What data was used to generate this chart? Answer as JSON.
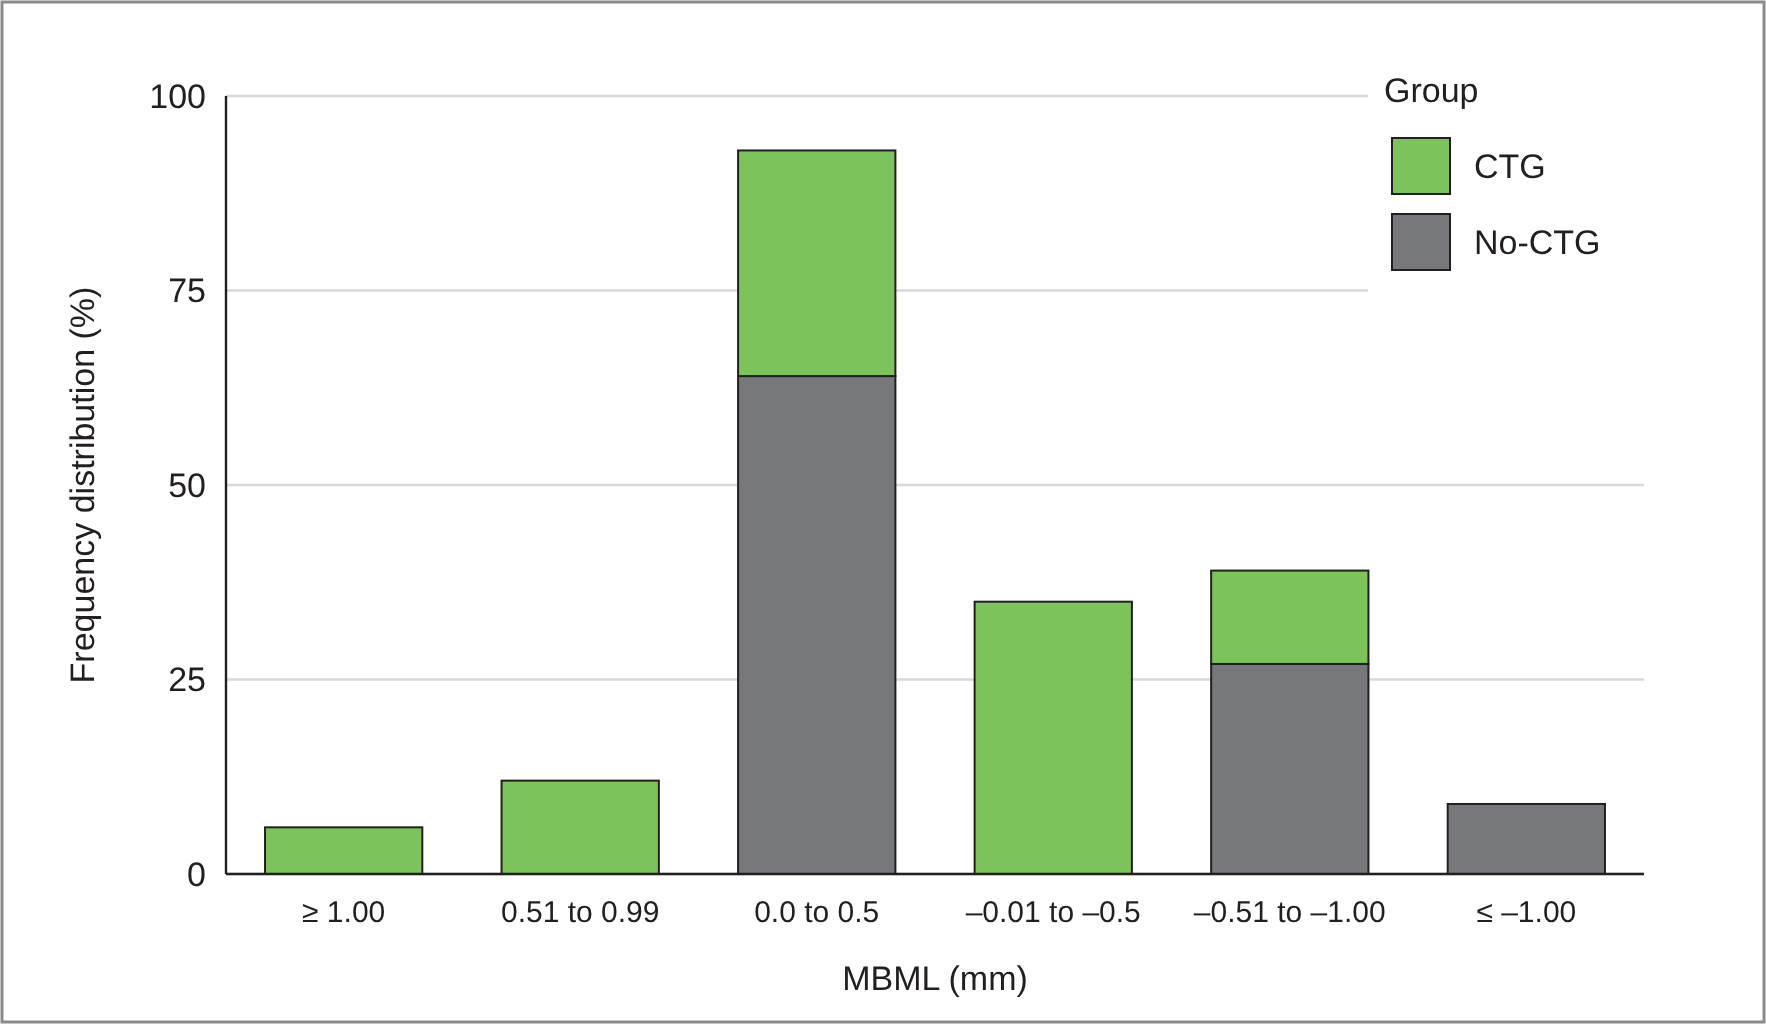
{
  "chart_data": {
    "type": "bar",
    "stacked": true,
    "xlabel": "MBML (mm)",
    "ylabel": "Frequency distribution (%)",
    "legend_title": "Group",
    "legend": "top right",
    "grid": "y",
    "categories": [
      "≥ 1.00",
      "0.51 to 0.99",
      "0.0 to 0.5",
      "–0.01 to –0.5",
      "–0.51 to –1.00",
      "≤ –1.00"
    ],
    "series": [
      {
        "name": "No-CTG",
        "color": "#77787b",
        "values": [
          0,
          0,
          64,
          0,
          27,
          9
        ]
      },
      {
        "name": "CTG",
        "color": "#7bc35a",
        "values": [
          6,
          12,
          29,
          35,
          12,
          0
        ]
      }
    ],
    "ylim": [
      0,
      100
    ],
    "yticks": [
      0,
      25,
      50,
      75,
      100
    ]
  }
}
